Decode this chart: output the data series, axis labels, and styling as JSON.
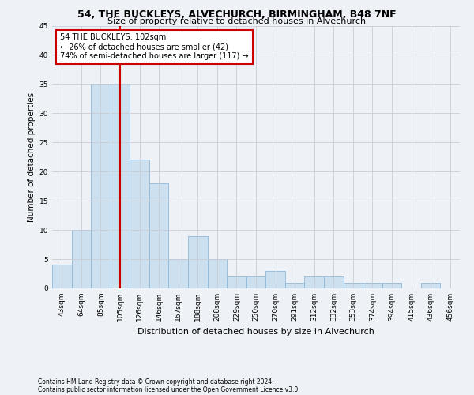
{
  "title1": "54, THE BUCKLEYS, ALVECHURCH, BIRMINGHAM, B48 7NF",
  "title2": "Size of property relative to detached houses in Alvechurch",
  "xlabel": "Distribution of detached houses by size in Alvechurch",
  "ylabel": "Number of detached properties",
  "footer1": "Contains HM Land Registry data © Crown copyright and database right 2024.",
  "footer2": "Contains public sector information licensed under the Open Government Licence v3.0.",
  "annotation_line1": "54 THE BUCKLEYS: 102sqm",
  "annotation_line2": "← 26% of detached houses are smaller (42)",
  "annotation_line3": "74% of semi-detached houses are larger (117) →",
  "bar_labels": [
    "43sqm",
    "64sqm",
    "85sqm",
    "105sqm",
    "126sqm",
    "146sqm",
    "167sqm",
    "188sqm",
    "208sqm",
    "229sqm",
    "250sqm",
    "270sqm",
    "291sqm",
    "312sqm",
    "332sqm",
    "353sqm",
    "374sqm",
    "394sqm",
    "415sqm",
    "436sqm",
    "456sqm"
  ],
  "bar_values": [
    4,
    10,
    35,
    35,
    22,
    18,
    5,
    9,
    5,
    2,
    2,
    3,
    1,
    2,
    2,
    1,
    1,
    1,
    0,
    1,
    0
  ],
  "bar_color": "#cce0f0",
  "bar_edge_color": "#90b8d8",
  "red_line_x": 3.0,
  "ylim": [
    0,
    45
  ],
  "yticks": [
    0,
    5,
    10,
    15,
    20,
    25,
    30,
    35,
    40,
    45
  ],
  "annotation_box_color": "#ffffff",
  "annotation_box_edge": "#cc0000",
  "red_line_color": "#cc0000",
  "bg_color": "#eef2f7",
  "grid_color": "#c8ccd4",
  "title1_fontsize": 9,
  "title2_fontsize": 8,
  "xlabel_fontsize": 8,
  "ylabel_fontsize": 7.5,
  "tick_fontsize": 6.5,
  "annot_fontsize": 7,
  "footer_fontsize": 5.5
}
